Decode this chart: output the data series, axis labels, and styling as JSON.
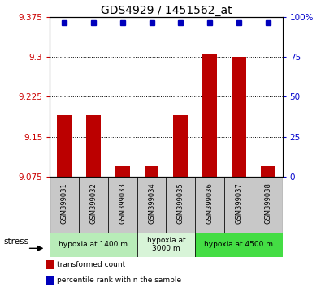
{
  "title": "GDS4929 / 1451562_at",
  "samples": [
    "GSM399031",
    "GSM399032",
    "GSM399033",
    "GSM399034",
    "GSM399035",
    "GSM399036",
    "GSM399037",
    "GSM399038"
  ],
  "red_values": [
    9.19,
    9.19,
    9.095,
    9.095,
    9.19,
    9.305,
    9.3,
    9.095
  ],
  "blue_values": [
    9.365,
    9.365,
    9.365,
    9.365,
    9.365,
    9.365,
    9.365,
    9.365
  ],
  "ylim_left": [
    9.075,
    9.375
  ],
  "ylim_right": [
    0,
    100
  ],
  "yticks_left": [
    9.075,
    9.15,
    9.225,
    9.3,
    9.375
  ],
  "yticks_right": [
    0,
    25,
    50,
    75,
    100
  ],
  "groups": [
    {
      "label": "hypoxia at 1400 m",
      "start": 0,
      "end": 3,
      "color": "#b8ecb8"
    },
    {
      "label": "hypoxia at\n3000 m",
      "start": 3,
      "end": 5,
      "color": "#d8f4d8"
    },
    {
      "label": "hypoxia at 4500 m",
      "start": 5,
      "end": 8,
      "color": "#44dd44"
    }
  ],
  "stress_label": "stress",
  "legend_red": "transformed count",
  "legend_blue": "percentile rank within the sample",
  "bar_color": "#bb0000",
  "dot_color": "#0000bb",
  "grid_color": "#000000",
  "label_color_left": "#cc0000",
  "label_color_right": "#0000cc",
  "bar_width": 0.5,
  "dot_size": 20,
  "sample_box_color": "#c8c8c8"
}
